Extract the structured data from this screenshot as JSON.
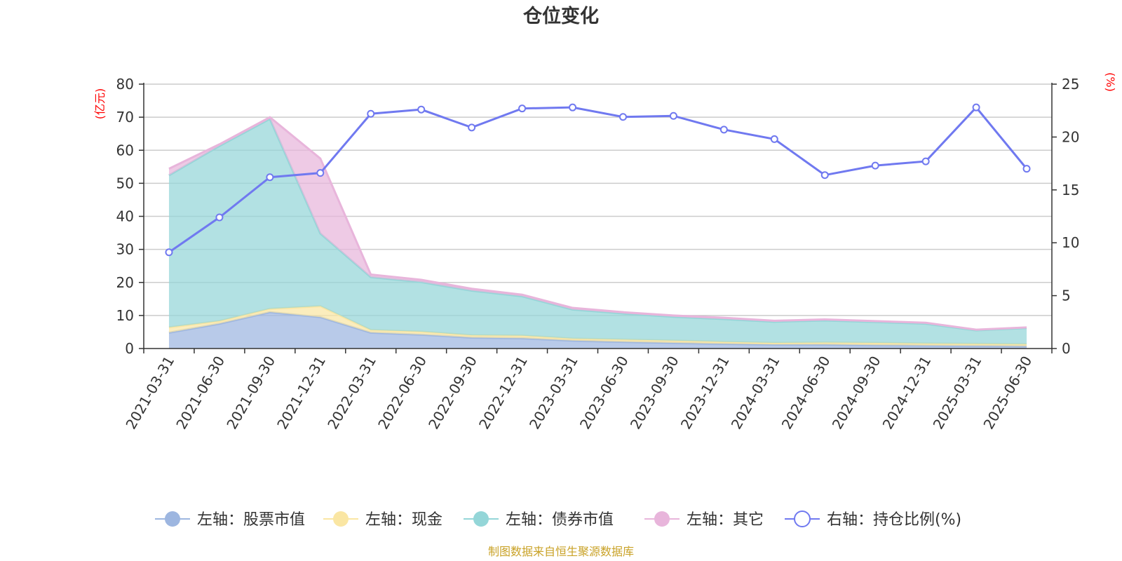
{
  "chart_data": {
    "type": "area",
    "title": "仓位变化",
    "source": "制图数据来自恒生聚源数据库",
    "y_left": {
      "unit": "(亿元)",
      "ylim": [
        0,
        80
      ],
      "ticks": [
        "0",
        "10",
        "20",
        "30",
        "40",
        "50",
        "60",
        "70",
        "80"
      ]
    },
    "y_right": {
      "unit": "(%)",
      "ylim": [
        0,
        25
      ],
      "ticks": [
        "0",
        "5",
        "10",
        "15",
        "20",
        "25"
      ]
    },
    "categories": [
      "2021-03-31",
      "2021-06-30",
      "2021-09-30",
      "2021-12-31",
      "2022-03-31",
      "2022-06-30",
      "2022-09-30",
      "2022-12-31",
      "2023-03-31",
      "2023-06-30",
      "2023-09-30",
      "2023-12-31",
      "2024-03-31",
      "2024-06-30",
      "2024-09-30",
      "2024-12-31",
      "2025-03-31",
      "2025-06-30"
    ],
    "grid": true,
    "legend_position": "bottom",
    "series": [
      {
        "name": "左轴：股票市值",
        "axis": "left",
        "color": "#9db6e0",
        "values": [
          4.8,
          7.5,
          11.0,
          9.5,
          4.8,
          4.2,
          3.3,
          3.1,
          2.4,
          2.0,
          1.7,
          1.4,
          1.2,
          1.2,
          1.0,
          0.9,
          0.8,
          0.7
        ]
      },
      {
        "name": "左轴：现金",
        "axis": "left",
        "color": "#fae6a3",
        "values": [
          1.6,
          0.8,
          1.0,
          3.3,
          0.8,
          0.9,
          0.7,
          0.8,
          0.6,
          0.7,
          0.7,
          0.6,
          0.5,
          0.6,
          0.7,
          0.6,
          0.6,
          0.6
        ]
      },
      {
        "name": "左轴：债券市值",
        "axis": "left",
        "color": "#94d6d8",
        "values": [
          46.0,
          53.0,
          57.5,
          22.0,
          16.0,
          15.0,
          13.5,
          11.9,
          8.8,
          7.9,
          7.2,
          6.9,
          6.4,
          6.7,
          6.3,
          6.0,
          4.1,
          4.9
        ]
      },
      {
        "name": "左轴：其它",
        "axis": "left",
        "color": "#e8b5db",
        "values": [
          2.0,
          0.5,
          0.5,
          22.7,
          0.8,
          0.7,
          0.6,
          0.5,
          0.5,
          0.4,
          0.4,
          0.4,
          0.3,
          0.3,
          0.3,
          0.3,
          0.2,
          0.2
        ]
      },
      {
        "name": "右轴：持仓比例(%)",
        "axis": "right",
        "color": "#7079f0",
        "type": "line",
        "values": [
          9.1,
          12.4,
          16.2,
          16.6,
          22.2,
          22.6,
          20.9,
          22.7,
          22.8,
          21.9,
          22.0,
          20.7,
          19.8,
          16.4,
          17.3,
          17.7,
          22.8,
          17.0
        ]
      }
    ]
  }
}
